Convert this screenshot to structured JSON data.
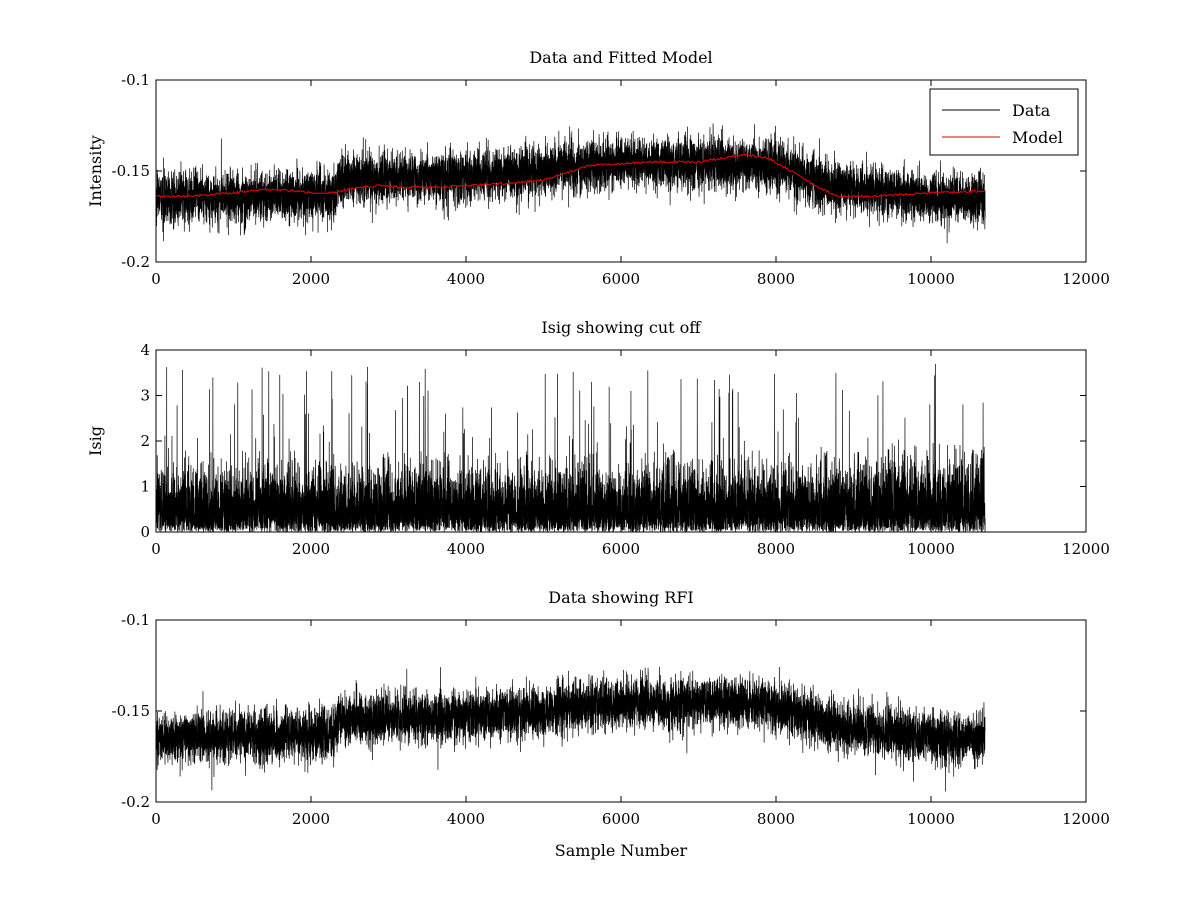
{
  "chart_data": [
    {
      "type": "line",
      "title": "Data and Fitted Model",
      "xlabel": "",
      "ylabel": "Intensity",
      "xlim": [
        0,
        12000
      ],
      "ylim": [
        -0.2,
        -0.1
      ],
      "xticks": [
        0,
        2000,
        4000,
        6000,
        8000,
        10000,
        12000
      ],
      "yticks": [
        -0.2,
        -0.15,
        -0.1
      ],
      "xtick_labels": [
        "0",
        "2000",
        "4000",
        "6000",
        "8000",
        "10000",
        "12000"
      ],
      "ytick_labels": [
        "-0.2",
        "-0.15",
        "-0.1"
      ],
      "grid": false,
      "legend": {
        "placement": "top-right",
        "entries": [
          "Data",
          "Model"
        ]
      },
      "n_samples": 10700,
      "series": [
        {
          "name": "Data",
          "color": "#000000",
          "kind": "noisy",
          "noise_amplitude": 0.009,
          "baseline": {
            "x": [
              0,
              2300,
              2350,
              4000,
              5000,
              5500,
              6000,
              7000,
              7700,
              8200,
              8700,
              9500,
              10000,
              10700
            ],
            "y": [
              -0.165,
              -0.163,
              -0.155,
              -0.153,
              -0.15,
              -0.147,
              -0.146,
              -0.146,
              -0.146,
              -0.15,
              -0.158,
              -0.162,
              -0.165,
              -0.165
            ]
          }
        },
        {
          "name": "Model",
          "color": "#e00000",
          "kind": "smooth",
          "x": [
            0,
            300,
            700,
            1000,
            1400,
            1800,
            2000,
            2300,
            2600,
            2900,
            3200,
            3700,
            4000,
            4500,
            5000,
            5300,
            5600,
            6000,
            6500,
            7000,
            7300,
            7600,
            7900,
            8200,
            8500,
            8800,
            9200,
            9600,
            10000,
            10700
          ],
          "y": [
            -0.164,
            -0.164,
            -0.163,
            -0.162,
            -0.16,
            -0.161,
            -0.162,
            -0.162,
            -0.159,
            -0.158,
            -0.159,
            -0.159,
            -0.158,
            -0.157,
            -0.155,
            -0.151,
            -0.147,
            -0.146,
            -0.145,
            -0.145,
            -0.143,
            -0.141,
            -0.143,
            -0.15,
            -0.158,
            -0.164,
            -0.164,
            -0.163,
            -0.162,
            -0.161
          ]
        }
      ]
    },
    {
      "type": "line",
      "title": "Isig showing cut off",
      "xlabel": "",
      "ylabel": "Isig",
      "xlim": [
        0,
        12000
      ],
      "ylim": [
        0,
        4
      ],
      "xticks": [
        0,
        2000,
        4000,
        6000,
        8000,
        10000,
        12000
      ],
      "yticks": [
        0,
        1,
        2,
        3,
        4
      ],
      "xtick_labels": [
        "0",
        "2000",
        "4000",
        "6000",
        "8000",
        "10000",
        "12000"
      ],
      "ytick_labels": [
        "0",
        "1",
        "2",
        "3",
        "4"
      ],
      "grid": false,
      "n_samples": 10700,
      "series": [
        {
          "color": "#000000",
          "kind": "positive-noise",
          "typical_max": 1.8,
          "spike_max": 3.65,
          "baseline": {
            "x": [
              0,
              10700
            ],
            "y": [
              0.8,
              0.8
            ]
          }
        }
      ]
    },
    {
      "type": "line",
      "title": "Data showing RFI",
      "xlabel": "Sample Number",
      "ylabel": "",
      "xlim": [
        0,
        12000
      ],
      "ylim": [
        -0.2,
        -0.1
      ],
      "xticks": [
        0,
        2000,
        4000,
        6000,
        8000,
        10000,
        12000
      ],
      "yticks": [
        -0.2,
        -0.15,
        -0.1
      ],
      "xtick_labels": [
        "0",
        "2000",
        "4000",
        "6000",
        "8000",
        "10000",
        "12000"
      ],
      "ytick_labels": [
        "-0.2",
        "-0.15",
        "-0.1"
      ],
      "grid": false,
      "n_samples": 10700,
      "series": [
        {
          "color": "#000000",
          "kind": "noisy",
          "noise_amplitude": 0.009,
          "baseline": {
            "x": [
              0,
              2300,
              2350,
              4000,
              5000,
              5500,
              6000,
              7000,
              7700,
              8200,
              8700,
              9500,
              10000,
              10700
            ],
            "y": [
              -0.165,
              -0.163,
              -0.155,
              -0.153,
              -0.15,
              -0.147,
              -0.146,
              -0.146,
              -0.146,
              -0.15,
              -0.158,
              -0.162,
              -0.165,
              -0.165
            ]
          }
        }
      ]
    }
  ]
}
